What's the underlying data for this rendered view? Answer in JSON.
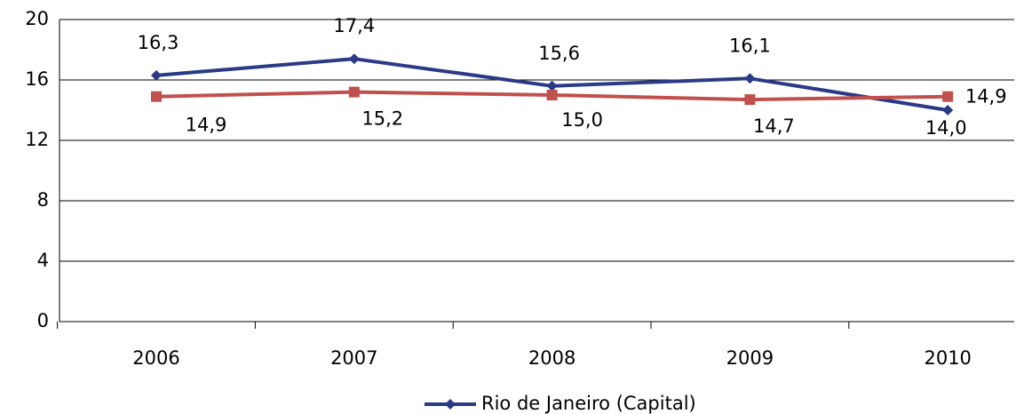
{
  "chart_data": {
    "type": "line",
    "categories": [
      "2006",
      "2007",
      "2008",
      "2009",
      "2010"
    ],
    "series": [
      {
        "name": "Rio de Janeiro (Capital)",
        "color": "#2b3a86",
        "marker": "diamond",
        "values": [
          16.3,
          17.4,
          15.6,
          16.1,
          14.0
        ],
        "value_labels": [
          "16,3",
          "17,4",
          "15,6",
          "16,1",
          "14,0"
        ]
      },
      {
        "color": "#c0504d",
        "marker": "square",
        "values": [
          14.9,
          15.2,
          15.0,
          14.7,
          14.9
        ],
        "value_labels": [
          "14,9",
          "15,2",
          "15,0",
          "14,7",
          "14,9"
        ]
      }
    ],
    "ylim": [
      0,
      20
    ],
    "yticks": [
      0,
      4,
      8,
      12,
      16,
      20
    ],
    "grid": true
  }
}
